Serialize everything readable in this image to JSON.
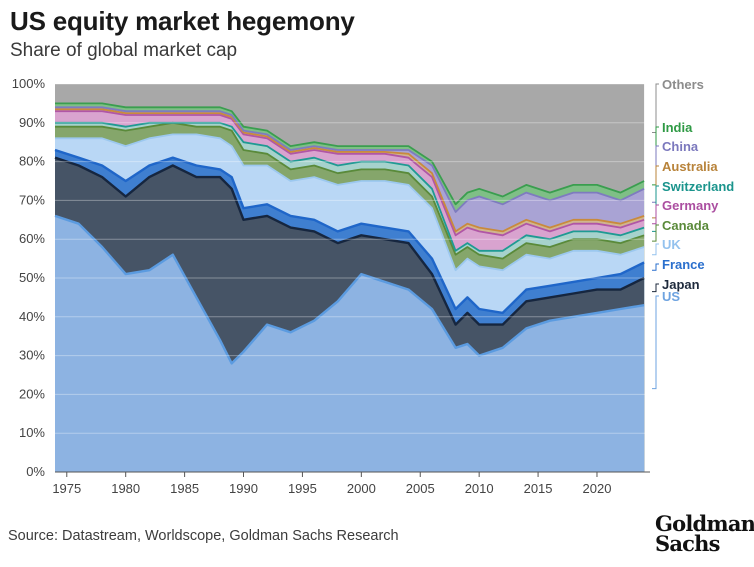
{
  "header": {
    "title": "US equity market hegemony",
    "subtitle": "Share of global market cap"
  },
  "footer": {
    "source": "Source: Datastream, Worldscope, Goldman Sachs Research",
    "logo_line1": "Goldman",
    "logo_line2": "Sachs"
  },
  "chart_data": {
    "type": "area",
    "stacked": true,
    "title": "US equity market hegemony",
    "subtitle": "Share of global market cap",
    "xlabel": "",
    "ylabel": "",
    "xlim": [
      1974,
      2024.5
    ],
    "ylim": [
      0,
      100
    ],
    "x_ticks": [
      1975,
      1980,
      1985,
      1990,
      1995,
      2000,
      2005,
      2010,
      2015,
      2020
    ],
    "y_ticks": [
      0,
      10,
      20,
      30,
      40,
      50,
      60,
      70,
      80,
      90,
      100
    ],
    "y_tick_labels": [
      "0%",
      "10%",
      "20%",
      "30%",
      "40%",
      "50%",
      "60%",
      "70%",
      "80%",
      "90%",
      "100%"
    ],
    "grid": true,
    "legend_position": "right",
    "x": [
      1974,
      1976,
      1978,
      1980,
      1982,
      1984,
      1986,
      1988,
      1989,
      1990,
      1992,
      1994,
      1996,
      1998,
      2000,
      2002,
      2004,
      2006,
      2008,
      2009,
      2010,
      2012,
      2014,
      2016,
      2018,
      2020,
      2022,
      2024
    ],
    "cumulative_top": [
      {
        "name": "US",
        "values": [
          66,
          64,
          58,
          51,
          52,
          56,
          45,
          34,
          28,
          31,
          38,
          36,
          39,
          44,
          51,
          49,
          47,
          42,
          32,
          33,
          30,
          32,
          37,
          39,
          40,
          41,
          42,
          43
        ]
      },
      {
        "name": "Japan",
        "values": [
          81,
          79,
          76,
          71,
          76,
          79,
          76,
          76,
          73,
          65,
          66,
          63,
          62,
          59,
          61,
          60,
          59,
          51,
          38,
          41,
          38,
          38,
          44,
          45,
          46,
          47,
          47,
          50
        ]
      },
      {
        "name": "France",
        "values": [
          83,
          81,
          79,
          75,
          79,
          81,
          79,
          78,
          76,
          68,
          69,
          66,
          65,
          62,
          64,
          63,
          62,
          55,
          42,
          45,
          42,
          41,
          47,
          48,
          49,
          50,
          51,
          54
        ]
      },
      {
        "name": "UK",
        "values": [
          86,
          86,
          86,
          84,
          86,
          87,
          87,
          86,
          84,
          79,
          79,
          75,
          76,
          74,
          75,
          75,
          74,
          68,
          52,
          55,
          53,
          52,
          56,
          55,
          57,
          57,
          56,
          58
        ]
      },
      {
        "name": "Canada",
        "values": [
          89,
          89,
          89,
          88,
          89,
          90,
          89,
          89,
          88,
          83,
          82,
          78,
          79,
          77,
          78,
          78,
          77,
          71,
          56,
          58,
          56,
          55,
          59,
          58,
          60,
          60,
          59,
          61
        ]
      },
      {
        "name": "Switzerland",
        "values": [
          90,
          90,
          90,
          89,
          90,
          90,
          90,
          90,
          89,
          85,
          84,
          80,
          81,
          79,
          80,
          80,
          79,
          73,
          57,
          59,
          57,
          57,
          61,
          60,
          62,
          62,
          61,
          63
        ]
      },
      {
        "name": "Germany",
        "values": [
          93,
          93,
          93,
          92,
          92,
          92,
          92,
          92,
          91,
          87,
          86,
          82,
          83,
          82,
          82,
          82,
          81,
          76,
          61,
          63,
          62,
          61,
          64,
          62,
          64,
          64,
          63,
          65
        ]
      },
      {
        "name": "Australia",
        "values": [
          93.5,
          93.5,
          93.5,
          92.5,
          92.5,
          92.5,
          92.5,
          92.5,
          91.5,
          87.5,
          86.5,
          82.5,
          83.5,
          82.5,
          82.5,
          82.5,
          82,
          77,
          62,
          64,
          63,
          62,
          65,
          63,
          65,
          65,
          64,
          66
        ]
      },
      {
        "name": "China",
        "values": [
          94,
          94,
          94,
          93,
          93,
          93,
          93,
          93,
          92,
          88,
          87,
          83,
          84,
          83,
          83,
          83,
          83,
          79,
          67,
          70,
          71,
          69,
          72,
          70,
          72,
          72,
          70,
          73
        ]
      },
      {
        "name": "India",
        "values": [
          95,
          95,
          95,
          94,
          94,
          94,
          94,
          94,
          93,
          89,
          88,
          84,
          85,
          84,
          84,
          84,
          84,
          80,
          69,
          72,
          73,
          71,
          74,
          72,
          74,
          74,
          72,
          75
        ]
      },
      {
        "name": "Others",
        "values": [
          100,
          100,
          100,
          100,
          100,
          100,
          100,
          100,
          100,
          100,
          100,
          100,
          100,
          100,
          100,
          100,
          100,
          100,
          100,
          100,
          100,
          100,
          100,
          100,
          100,
          100,
          100,
          100
        ]
      }
    ],
    "series_colors": {
      "US": "#8db3e2",
      "Japan": "#465466",
      "France": "#3f7fd0",
      "UK": "#b9d7f5",
      "Canada": "#85a66b",
      "Switzerland": "#a6d2cc",
      "Germany": "#d9a3cf",
      "Australia": "#d0b58f",
      "China": "#a9a3d4",
      "India": "#7fbf86",
      "Others": "#a8a8a8"
    },
    "line_colors": {
      "US": "#5b9be0",
      "Japan": "#16263f",
      "France": "#1f66c9",
      "UK": "#9cc8ef",
      "Canada": "#5a8a3a",
      "Switzerland": "#1f9a93",
      "Germany": "#b056a6",
      "Australia": "#c98a3d",
      "China": "#7e7bbf",
      "India": "#3a9e4f",
      "Others": "#9a9a9a"
    },
    "legend": [
      {
        "name": "Others",
        "label": "Others",
        "color": "#8c8c8c"
      },
      {
        "name": "India",
        "label": "India",
        "color": "#2f9a45"
      },
      {
        "name": "China",
        "label": "China",
        "color": "#7b78bd"
      },
      {
        "name": "Australia",
        "label": "Australia",
        "color": "#b8833a"
      },
      {
        "name": "Switzerland",
        "label": "Switzerland",
        "color": "#1a948c"
      },
      {
        "name": "Germany",
        "label": "Germany",
        "color": "#ab4ea0"
      },
      {
        "name": "Canada",
        "label": "Canada",
        "color": "#5a8a3a"
      },
      {
        "name": "UK",
        "label": "UK",
        "color": "#94c2ee"
      },
      {
        "name": "France",
        "label": "France",
        "color": "#2a6fcd"
      },
      {
        "name": "Japan",
        "label": "Japan",
        "color": "#1e2a3c"
      },
      {
        "name": "US",
        "label": "US",
        "color": "#6ea3e0"
      }
    ]
  }
}
